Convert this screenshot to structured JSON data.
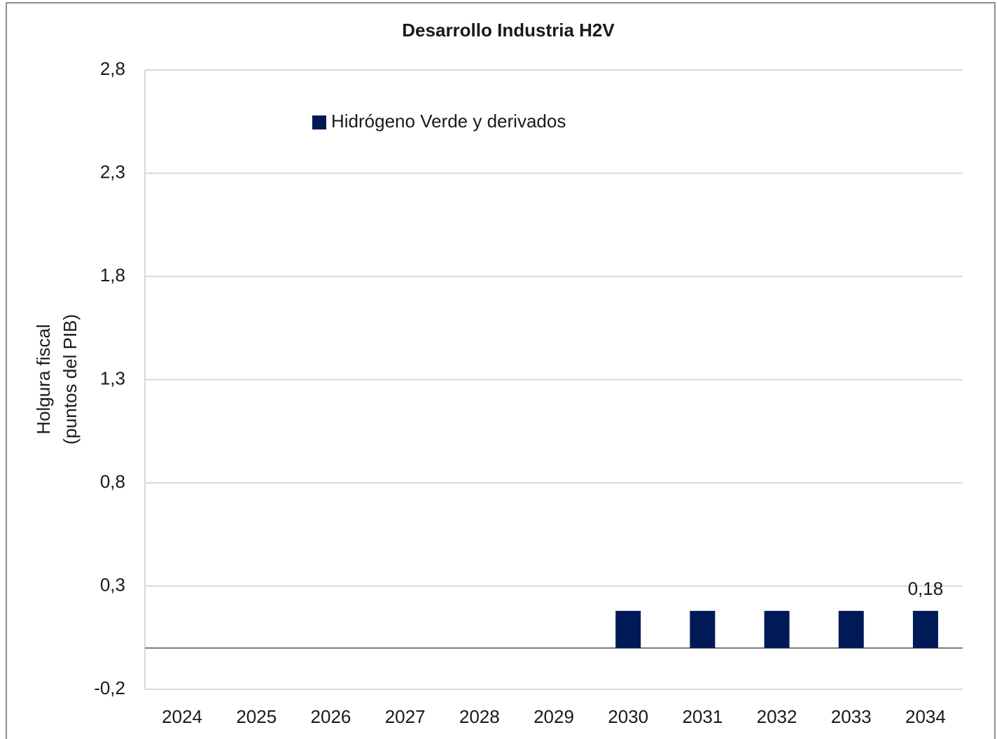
{
  "chart_data": {
    "type": "bar",
    "title": "Desarrollo Industria H2V",
    "ylabel": [
      "Holgura fiscal",
      "(puntos del PIB)"
    ],
    "categories": [
      "2024",
      "2025",
      "2026",
      "2027",
      "2028",
      "2029",
      "2030",
      "2031",
      "2032",
      "2033",
      "2034"
    ],
    "series": [
      {
        "name": "Hidrógeno Verde y derivados",
        "color": "#001a57",
        "values": [
          0,
          0,
          0,
          0,
          0,
          0,
          0.18,
          0.18,
          0.18,
          0.18,
          0.18
        ],
        "value_labels": [
          null,
          null,
          null,
          null,
          null,
          null,
          null,
          null,
          null,
          null,
          "0,18"
        ]
      }
    ],
    "ylim": [
      -0.2,
      2.8
    ],
    "yticks": [
      {
        "value": -0.2,
        "label": "-0,2"
      },
      {
        "value": 0.3,
        "label": "0,3"
      },
      {
        "value": 0.8,
        "label": "0,8"
      },
      {
        "value": 1.3,
        "label": "1,3"
      },
      {
        "value": 1.8,
        "label": "1,8"
      },
      {
        "value": 2.3,
        "label": "2,3"
      },
      {
        "value": 2.8,
        "label": "2,8"
      }
    ],
    "grid": true,
    "legend": "upper left"
  }
}
